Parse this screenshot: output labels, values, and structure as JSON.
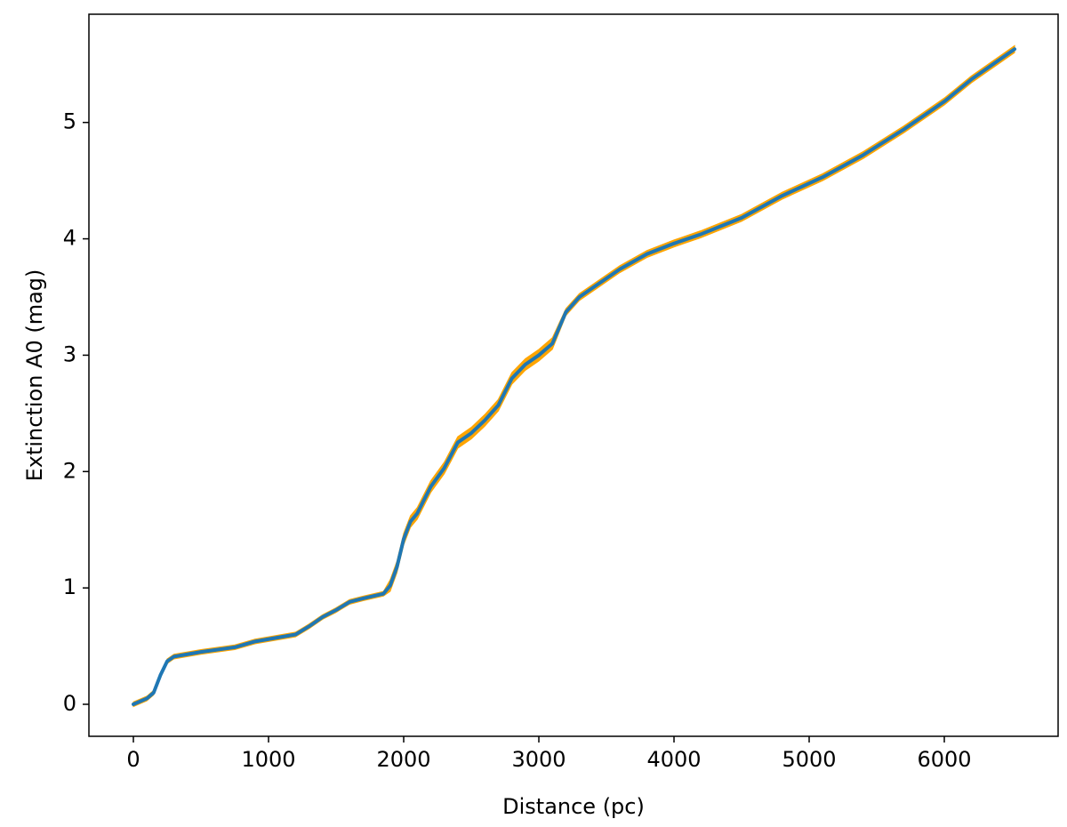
{
  "chart_data": {
    "type": "line",
    "xlabel": "Distance (pc)",
    "ylabel": "Extinction A0 (mag)",
    "x": [
      0,
      100,
      150,
      200,
      250,
      300,
      400,
      500,
      750,
      900,
      1000,
      1200,
      1300,
      1400,
      1500,
      1600,
      1700,
      1850,
      1900,
      1950,
      2000,
      2050,
      2100,
      2200,
      2300,
      2400,
      2500,
      2600,
      2700,
      2800,
      2900,
      3000,
      3100,
      3200,
      3300,
      3400,
      3600,
      3800,
      4000,
      4200,
      4500,
      4800,
      5100,
      5400,
      5700,
      6000,
      6200,
      6520
    ],
    "series": [
      {
        "color": "#1f77b4",
        "values": [
          0,
          0.05,
          0.1,
          0.25,
          0.37,
          0.41,
          0.43,
          0.45,
          0.49,
          0.54,
          0.56,
          0.6,
          0.67,
          0.75,
          0.81,
          0.88,
          0.91,
          0.95,
          1.02,
          1.18,
          1.42,
          1.57,
          1.64,
          1.87,
          2.03,
          2.25,
          2.33,
          2.44,
          2.57,
          2.8,
          2.92,
          3.0,
          3.1,
          3.37,
          3.5,
          3.58,
          3.74,
          3.87,
          3.96,
          4.04,
          4.18,
          4.37,
          4.53,
          4.72,
          4.94,
          5.18,
          5.37,
          5.63
        ]
      }
    ],
    "band": {
      "color": "#ffa500",
      "lower": [
        -0.02,
        0.03,
        0.08,
        0.23,
        0.35,
        0.39,
        0.41,
        0.43,
        0.47,
        0.52,
        0.54,
        0.58,
        0.65,
        0.73,
        0.79,
        0.86,
        0.89,
        0.93,
        0.97,
        1.13,
        1.37,
        1.52,
        1.59,
        1.82,
        1.98,
        2.2,
        2.28,
        2.39,
        2.52,
        2.75,
        2.87,
        2.95,
        3.05,
        3.34,
        3.47,
        3.55,
        3.71,
        3.84,
        3.93,
        4.01,
        4.15,
        4.34,
        4.5,
        4.69,
        4.91,
        5.15,
        5.34,
        5.6
      ],
      "upper": [
        0.02,
        0.07,
        0.12,
        0.27,
        0.39,
        0.43,
        0.45,
        0.47,
        0.51,
        0.56,
        0.58,
        0.62,
        0.69,
        0.77,
        0.83,
        0.9,
        0.93,
        0.97,
        1.07,
        1.23,
        1.47,
        1.62,
        1.69,
        1.92,
        2.08,
        2.3,
        2.38,
        2.49,
        2.62,
        2.85,
        2.97,
        3.05,
        3.15,
        3.4,
        3.53,
        3.61,
        3.77,
        3.9,
        3.99,
        4.07,
        4.21,
        4.4,
        4.56,
        4.75,
        4.97,
        5.21,
        5.4,
        5.66
      ]
    },
    "xlim": [
      -329,
      6842
    ],
    "ylim": [
      -0.275,
      5.93
    ],
    "xticks": [
      0,
      1000,
      2000,
      3000,
      4000,
      5000,
      6000
    ],
    "yticks": [
      0,
      1,
      2,
      3,
      4,
      5
    ],
    "grid": false
  }
}
